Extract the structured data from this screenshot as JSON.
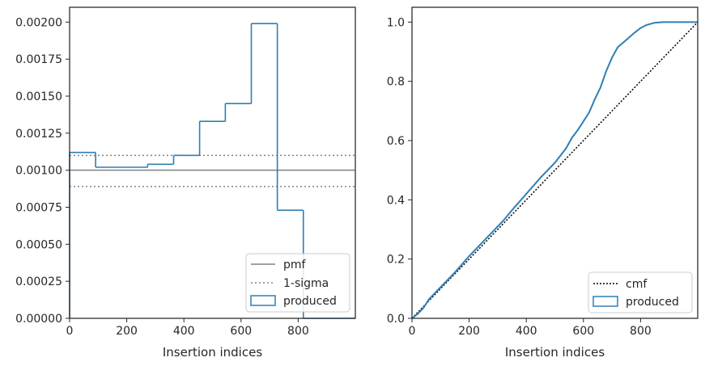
{
  "colors": {
    "produced": "#2f7fb5",
    "pmf": "#808080",
    "sigma": "#808080",
    "cmf": "#000000",
    "axes": "#262626"
  },
  "chart_data": [
    {
      "type": "histogram",
      "xlabel": "Insertion indices",
      "ylabel": "",
      "xlim": [
        0,
        1000
      ],
      "ylim": [
        0,
        0.0021
      ],
      "xticks": [
        0,
        200,
        400,
        600,
        800
      ],
      "xtick_labels": [
        "0",
        "200",
        "400",
        "600",
        "800"
      ],
      "yticks": [
        0,
        0.00025,
        0.0005,
        0.00075,
        0.001,
        0.00125,
        0.0015,
        0.00175,
        0.002
      ],
      "ytick_labels": [
        "0.00000",
        "0.00025",
        "0.00050",
        "0.00075",
        "0.00100",
        "0.00125",
        "0.00150",
        "0.00175",
        "0.00200"
      ],
      "grid": false,
      "legend_position": "lower-right",
      "legend": [
        "pmf",
        "1-sigma",
        "produced"
      ],
      "pmf": 0.001,
      "sigma_band": [
        0.00089,
        0.0011
      ],
      "bin_edges": [
        0,
        91,
        182,
        273,
        364,
        455,
        545,
        636,
        727,
        818,
        909,
        1000
      ],
      "values": [
        0.00112,
        0.00102,
        0.00102,
        0.00104,
        0.0011,
        0.00133,
        0.00145,
        0.00199,
        0.00073,
        0.0,
        0.0
      ]
    },
    {
      "type": "line",
      "xlabel": "Insertion indices",
      "ylabel": "",
      "xlim": [
        0,
        1000
      ],
      "ylim": [
        0,
        1.05
      ],
      "xticks": [
        0,
        200,
        400,
        600,
        800
      ],
      "xtick_labels": [
        "0",
        "200",
        "400",
        "600",
        "800"
      ],
      "yticks": [
        0,
        0.2,
        0.4,
        0.6,
        0.8,
        1.0
      ],
      "ytick_labels": [
        "0.0",
        "0.2",
        "0.4",
        "0.6",
        "0.8",
        "1.0"
      ],
      "grid": false,
      "legend_position": "lower-right",
      "legend": [
        "cmf",
        "produced"
      ],
      "cmf": {
        "x": [
          0,
          1000
        ],
        "y": [
          0,
          1
        ]
      },
      "produced": {
        "x": [
          0,
          20,
          40,
          60,
          80,
          100,
          150,
          200,
          250,
          300,
          320,
          350,
          400,
          450,
          500,
          520,
          540,
          560,
          580,
          600,
          620,
          640,
          660,
          680,
          700,
          720,
          750,
          780,
          800,
          820,
          850,
          880,
          1000
        ],
        "y": [
          0,
          0.015,
          0.035,
          0.065,
          0.085,
          0.105,
          0.155,
          0.21,
          0.26,
          0.31,
          0.33,
          0.365,
          0.42,
          0.475,
          0.525,
          0.55,
          0.575,
          0.61,
          0.635,
          0.665,
          0.695,
          0.74,
          0.78,
          0.835,
          0.88,
          0.915,
          0.94,
          0.965,
          0.98,
          0.99,
          0.998,
          1.0,
          1.0
        ]
      }
    }
  ]
}
